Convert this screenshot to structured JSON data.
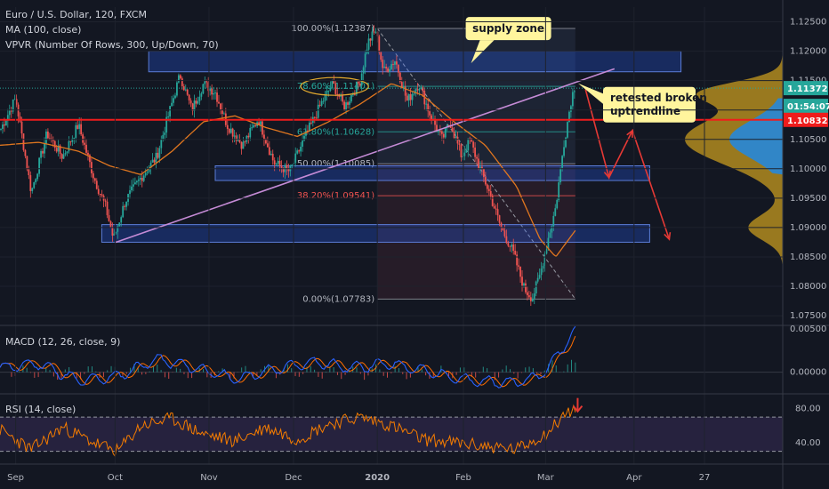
{
  "chart_data": [
    {
      "type": "candlestick",
      "title": "Euro / U.S. Dollar, 120, FXCM",
      "indicators": [
        "MA (100, close)",
        "VPVR (Number Of Rows, 300, Up/Down, 70)"
      ],
      "x_ticks": [
        {
          "label": "Sep",
          "t": 0.02
        },
        {
          "label": "Oct",
          "t": 0.147
        },
        {
          "label": "Nov",
          "t": 0.267
        },
        {
          "label": "Dec",
          "t": 0.375
        },
        {
          "label": "2020",
          "t": 0.482
        },
        {
          "label": "Feb",
          "t": 0.592
        },
        {
          "label": "Mar",
          "t": 0.697
        },
        {
          "label": "Apr",
          "t": 0.81
        },
        {
          "label": "27",
          "t": 0.9
        }
      ],
      "y_ticks": [
        "1.12500",
        "1.12000",
        "1.11500",
        "1.11000",
        "1.10500",
        "1.10000",
        "1.09500",
        "1.09000",
        "1.08500",
        "1.08000",
        "1.07500"
      ],
      "ylim": [
        1.0735,
        1.1275
      ],
      "price_path": [
        [
          0.0,
          1.1065
        ],
        [
          0.02,
          1.112
        ],
        [
          0.04,
          1.096
        ],
        [
          0.06,
          1.106
        ],
        [
          0.08,
          1.102
        ],
        [
          0.1,
          1.1075
        ],
        [
          0.12,
          1.0985
        ],
        [
          0.135,
          1.0935
        ],
        [
          0.145,
          1.088
        ],
        [
          0.16,
          1.0945
        ],
        [
          0.18,
          1.0985
        ],
        [
          0.2,
          1.102
        ],
        [
          0.215,
          1.109
        ],
        [
          0.23,
          1.116
        ],
        [
          0.245,
          1.11
        ],
        [
          0.26,
          1.1145
        ],
        [
          0.275,
          1.113
        ],
        [
          0.29,
          1.1075
        ],
        [
          0.31,
          1.104
        ],
        [
          0.33,
          1.1085
        ],
        [
          0.35,
          1.101
        ],
        [
          0.37,
          1.0995
        ],
        [
          0.39,
          1.1055
        ],
        [
          0.41,
          1.111
        ],
        [
          0.425,
          1.1145
        ],
        [
          0.44,
          1.1105
        ],
        [
          0.46,
          1.115
        ],
        [
          0.47,
          1.1215
        ],
        [
          0.48,
          1.1235
        ],
        [
          0.49,
          1.1165
        ],
        [
          0.505,
          1.1185
        ],
        [
          0.52,
          1.1115
        ],
        [
          0.535,
          1.1145
        ],
        [
          0.55,
          1.109
        ],
        [
          0.565,
          1.105
        ],
        [
          0.575,
          1.108
        ],
        [
          0.59,
          1.102
        ],
        [
          0.6,
          1.105
        ],
        [
          0.612,
          1.1005
        ],
        [
          0.625,
          1.096
        ],
        [
          0.64,
          1.09
        ],
        [
          0.655,
          1.086
        ],
        [
          0.67,
          1.0795
        ],
        [
          0.68,
          1.078
        ],
        [
          0.69,
          1.082
        ],
        [
          0.7,
          1.088
        ],
        [
          0.71,
          1.0935
        ],
        [
          0.72,
          1.104
        ],
        [
          0.73,
          1.112
        ],
        [
          0.735,
          1.1145
        ]
      ],
      "ma_path": [
        [
          0.0,
          1.104
        ],
        [
          0.05,
          1.1045
        ],
        [
          0.1,
          1.103
        ],
        [
          0.14,
          1.1005
        ],
        [
          0.18,
          1.099
        ],
        [
          0.22,
          1.103
        ],
        [
          0.26,
          1.108
        ],
        [
          0.3,
          1.109
        ],
        [
          0.34,
          1.107
        ],
        [
          0.38,
          1.1055
        ],
        [
          0.42,
          1.108
        ],
        [
          0.46,
          1.111
        ],
        [
          0.5,
          1.1145
        ],
        [
          0.54,
          1.1125
        ],
        [
          0.58,
          1.108
        ],
        [
          0.62,
          1.104
        ],
        [
          0.66,
          1.097
        ],
        [
          0.69,
          1.088
        ],
        [
          0.71,
          1.085
        ],
        [
          0.735,
          1.0895
        ]
      ],
      "fibonacci": [
        {
          "label": "100.00%(1.12387)",
          "level": 1.12387
        },
        {
          "label": "78.60%(1.11401)",
          "level": 1.11401
        },
        {
          "label": "61.80%(1.10628)",
          "level": 1.10628
        },
        {
          "label": "50.00%(1.10085)",
          "level": 1.10085
        },
        {
          "label": "38.20%(1.09541)",
          "level": 1.09541
        },
        {
          "label": "0.00%(1.07783)",
          "level": 1.07783
        }
      ],
      "zones": [
        {
          "from": 1.1165,
          "to": 1.12,
          "t0": 0.19,
          "t1": 0.87
        },
        {
          "from": 1.098,
          "to": 1.1005,
          "t0": 0.275,
          "t1": 0.83
        },
        {
          "from": 1.0875,
          "to": 1.0905,
          "t0": 0.13,
          "t1": 0.83
        }
      ],
      "uptrendline": {
        "t0": 0.148,
        "v0": 1.0875,
        "t1": 0.785,
        "v1": 1.117
      },
      "horizontal_level": 1.10832,
      "last_price_line": 1.11372,
      "projection_path": [
        [
          0.748,
          1.1135
        ],
        [
          0.778,
          1.0985
        ],
        [
          0.808,
          1.1065
        ],
        [
          0.855,
          1.088
        ]
      ],
      "annotations": [
        {
          "text": "supply zone",
          "box_at": [
            0.62,
            1.124
          ]
        },
        {
          "text": "retested broken\nuptrendline",
          "box_at": [
            0.8,
            1.1115
          ]
        }
      ],
      "price_tags": [
        {
          "text": "1.11372",
          "value": 1.11372,
          "color": "#26a69a"
        },
        {
          "text": "01:54:07",
          "value": 1.11,
          "color": "#26a69a"
        },
        {
          "text": "1.10832",
          "value": 1.10832,
          "color": "#ef1c1c"
        }
      ],
      "volume_profile": true
    },
    {
      "type": "line",
      "title": "MACD (12, 26, close, 9)",
      "y_ticks": [
        "0.00500",
        "0.00000"
      ],
      "ylim": [
        -0.0022,
        0.0052
      ],
      "macd_path": [
        [
          0.0,
          0.0005
        ],
        [
          0.05,
          0.001
        ],
        [
          0.1,
          -0.001
        ],
        [
          0.15,
          -0.0005
        ],
        [
          0.2,
          0.0015
        ],
        [
          0.25,
          0.0005
        ],
        [
          0.3,
          -0.0008
        ],
        [
          0.35,
          0.0003
        ],
        [
          0.4,
          0.0012
        ],
        [
          0.45,
          0.0005
        ],
        [
          0.5,
          0.001
        ],
        [
          0.55,
          0.0
        ],
        [
          0.6,
          -0.001
        ],
        [
          0.65,
          -0.0012
        ],
        [
          0.68,
          -0.0008
        ],
        [
          0.7,
          0.0005
        ],
        [
          0.72,
          0.003
        ],
        [
          0.735,
          0.0048
        ]
      ]
    },
    {
      "type": "line",
      "title": "RSI (14, close)",
      "y_ticks": [
        "80.00",
        "40.00"
      ],
      "ylim": [
        15,
        95
      ],
      "band": [
        30,
        70
      ],
      "rsi_path": [
        [
          0.0,
          55
        ],
        [
          0.04,
          32
        ],
        [
          0.08,
          58
        ],
        [
          0.12,
          40
        ],
        [
          0.15,
          30
        ],
        [
          0.18,
          60
        ],
        [
          0.22,
          68
        ],
        [
          0.26,
          50
        ],
        [
          0.3,
          42
        ],
        [
          0.34,
          58
        ],
        [
          0.38,
          44
        ],
        [
          0.42,
          62
        ],
        [
          0.46,
          70
        ],
        [
          0.5,
          60
        ],
        [
          0.54,
          44
        ],
        [
          0.58,
          40
        ],
        [
          0.62,
          36
        ],
        [
          0.66,
          32
        ],
        [
          0.7,
          52
        ],
        [
          0.72,
          72
        ],
        [
          0.735,
          80
        ]
      ]
    }
  ]
}
